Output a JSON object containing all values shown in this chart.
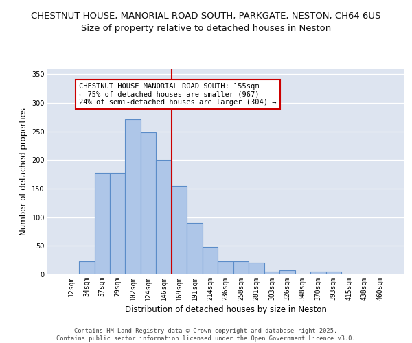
{
  "title_line1": "CHESTNUT HOUSE, MANORIAL ROAD SOUTH, PARKGATE, NESTON, CH64 6US",
  "title_line2": "Size of property relative to detached houses in Neston",
  "xlabel": "Distribution of detached houses by size in Neston",
  "ylabel": "Number of detached properties",
  "categories": [
    "12sqm",
    "34sqm",
    "57sqm",
    "79sqm",
    "102sqm",
    "124sqm",
    "146sqm",
    "169sqm",
    "191sqm",
    "214sqm",
    "236sqm",
    "258sqm",
    "281sqm",
    "303sqm",
    "326sqm",
    "348sqm",
    "370sqm",
    "393sqm",
    "415sqm",
    "438sqm",
    "460sqm"
  ],
  "values": [
    0,
    23,
    178,
    178,
    271,
    248,
    200,
    155,
    90,
    48,
    23,
    23,
    20,
    5,
    7,
    0,
    5,
    5,
    0,
    0,
    0
  ],
  "bar_color": "#aec6e8",
  "bar_edge_color": "#5b8cc8",
  "vline_color": "#cc0000",
  "vline_index": 7,
  "annotation_text": "CHESTNUT HOUSE MANORIAL ROAD SOUTH: 155sqm\n← 75% of detached houses are smaller (967)\n24% of semi-detached houses are larger (304) →",
  "annotation_box_color": "#cc0000",
  "ylim": [
    0,
    360
  ],
  "yticks": [
    0,
    50,
    100,
    150,
    200,
    250,
    300,
    350
  ],
  "background_color": "#dde4f0",
  "footer_text": "Contains HM Land Registry data © Crown copyright and database right 2025.\nContains public sector information licensed under the Open Government Licence v3.0.",
  "title_fontsize": 9.5,
  "subtitle_fontsize": 9.5,
  "axis_label_fontsize": 8.5,
  "tick_fontsize": 7,
  "annotation_fontsize": 7.5,
  "footer_fontsize": 6.2
}
